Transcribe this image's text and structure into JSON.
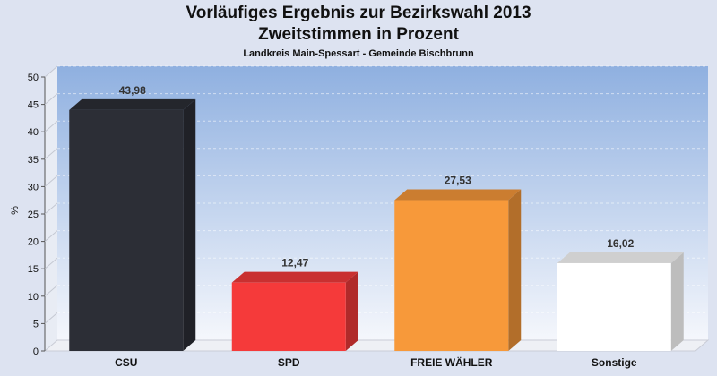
{
  "chart_data": {
    "type": "bar",
    "title": "Vorläufiges Ergebnis zur Bezirkswahl 2013",
    "subtitle": "Zweitstimmen in Prozent",
    "caption": "Landkreis Main-Spessart - Gemeinde Bischbrunn",
    "ylabel": "%",
    "xlabel": "",
    "ylim": [
      0,
      50
    ],
    "yticks": [
      0,
      5,
      10,
      15,
      20,
      25,
      30,
      35,
      40,
      45,
      50
    ],
    "categories": [
      "CSU",
      "SPD",
      "FREIE WÄHLER",
      "Sonstige"
    ],
    "values": [
      43.98,
      12.47,
      27.53,
      16.02
    ],
    "value_labels": [
      "43,98",
      "12,47",
      "27,53",
      "16,02"
    ],
    "colors": [
      "#2c2e36",
      "#f53a3a",
      "#f7993a",
      "#ffffff"
    ],
    "grid": true,
    "legend": "none"
  }
}
